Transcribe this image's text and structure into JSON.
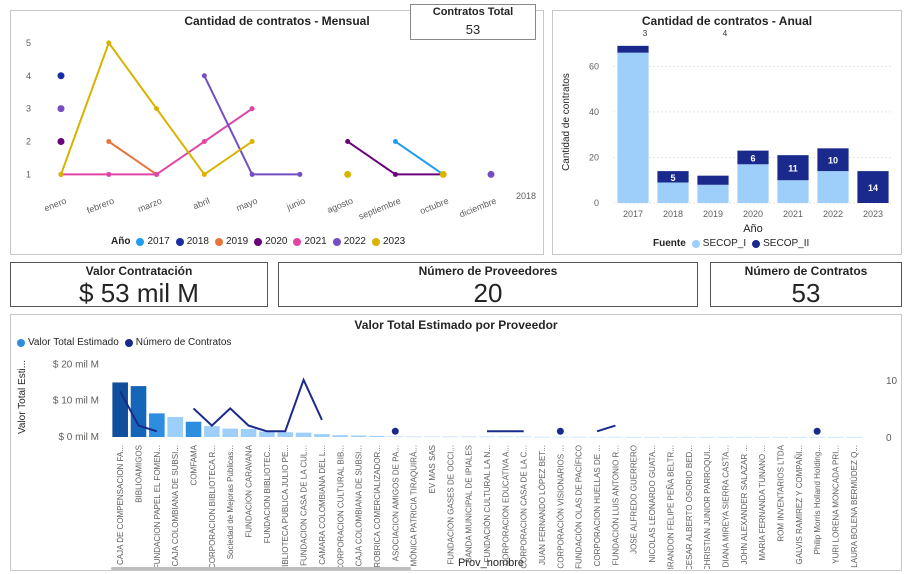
{
  "monthly": {
    "title": "Cantidad de contratos - Mensual",
    "legend_title": "Año",
    "y_ticks": [
      "1",
      "2",
      "3",
      "4",
      "5"
    ],
    "extra_label": "2018",
    "chart_data": {
      "type": "line",
      "categories": [
        "enero",
        "febrero",
        "marzo",
        "abril",
        "mayo",
        "junio",
        "agosto",
        "septiembre",
        "octubre",
        "diciembre"
      ],
      "ylim": [
        0.8,
        5.3
      ],
      "series": [
        {
          "name": "2017",
          "color": "#1f9bf0",
          "values": [
            null,
            null,
            null,
            null,
            null,
            null,
            null,
            2,
            1,
            null
          ]
        },
        {
          "name": "2018",
          "color": "#1a2fa3",
          "values": [
            4,
            null,
            null,
            null,
            null,
            null,
            null,
            null,
            null,
            null
          ]
        },
        {
          "name": "2019",
          "color": "#e8743b",
          "values": [
            null,
            2,
            1,
            null,
            null,
            null,
            null,
            null,
            null,
            null
          ]
        },
        {
          "name": "2020",
          "color": "#6b007b",
          "values": [
            2,
            null,
            null,
            null,
            null,
            null,
            2,
            1,
            1,
            null
          ]
        },
        {
          "name": "2021",
          "color": "#e044a7",
          "values": [
            1,
            1,
            1,
            2,
            3,
            null,
            null,
            null,
            null,
            null
          ]
        },
        {
          "name": "2022",
          "color": "#744ec2",
          "values": [
            3,
            null,
            null,
            4,
            1,
            1,
            null,
            null,
            null,
            1
          ]
        },
        {
          "name": "2023",
          "color": "#d9b300",
          "values": [
            1,
            5,
            3,
            1,
            2,
            null,
            1,
            null,
            1,
            null
          ]
        }
      ]
    }
  },
  "kpi_total": {
    "label": "Contratos Total",
    "value": "53"
  },
  "annual": {
    "title": "Cantidad de contratos - Anual",
    "ylabel": "Cantidad de contratos",
    "xlabel": "Año",
    "legend_title": "Fuente",
    "y_ticks": [
      "0",
      "20",
      "40",
      "60"
    ],
    "chart_data": {
      "type": "bar",
      "categories": [
        "2017",
        "2018",
        "2019",
        "2020",
        "2021",
        "2022",
        "2023"
      ],
      "ylim": [
        0,
        72
      ],
      "series": [
        {
          "name": "SECOP_I",
          "color": "#9ecffb",
          "values": [
            66,
            9,
            8,
            17,
            10,
            14,
            0
          ]
        },
        {
          "name": "SECOP_II",
          "color": "#1a2a8c",
          "values": [
            3,
            5,
            4,
            6,
            11,
            10,
            14
          ]
        }
      ],
      "data_labels_secop_ii": [
        "3",
        "5",
        "4",
        "6",
        "11",
        "10",
        "14"
      ],
      "data_labels_shown_inside": [
        false,
        true,
        false,
        true,
        true,
        true,
        true
      ]
    }
  },
  "kpi_valor": {
    "label": "Valor Contratación",
    "value": "$ 53 mil M"
  },
  "kpi_prov": {
    "label": "Número de Proveedores",
    "value": "20"
  },
  "kpi_contr": {
    "label": "Número de Contratos",
    "value": "53"
  },
  "bottom": {
    "title": "Valor Total Estimado por Proveedor",
    "legend": [
      "Valor Total Estimado",
      "Número de Contratos"
    ],
    "ylabel": "Valor Total Esti...",
    "xlabel": "Prov_nombre",
    "y_ticks": [
      "$ 0 mil M",
      "$ 10 mil M",
      "$ 20 mil M"
    ],
    "y2_ticks": [
      "0",
      "10"
    ],
    "chart_data": {
      "type": "bar",
      "categories": [
        "CAJA DE COMPENSACION FA...",
        "BIBLIOAMIGOS",
        "FUNDACION PAPEL EL FOMEN...",
        "CAJA COLOMBIANA DE SUBSI...",
        "COMFAMA",
        "CORPORACION BIBLIOTECA R...",
        "Sociedad de Mejoras Públicas...",
        "FUNDACION CARAVANA",
        "FUNDACION BIBLIOTEC...",
        "BIBLIOTECA PUBLICA JULIO PE...",
        "FUNDACION CASA DE LA CUL...",
        "CAMARA COLOMBIANA DEL L...",
        "CORPORACION CULTURAL BIB...",
        "CAJA COLOMBIANA DE SUBSI...",
        "ROBRICA COMERCIALIZADOR...",
        "ASOCIACION AMIGOS DE PA...",
        "MÓNICA PATRICIA TIRAQUIRÁ...",
        "EV MAS SAS",
        "FUNDACION GASES DE OCCI...",
        "BANDA MUNICIPAL DE IPIALES",
        "FUNDACIÓN CULTURAL LA N...",
        "CORPORACION EDUCATIVA A...",
        "CORPORACION CASA DE LA C...",
        "JUAN FERNANDO LÓPEZ BET...",
        "CORPORACIÓN VISIONARIOS ...",
        "FUNDACIÓN OLAS DE PACÍFICO",
        "CORPORACION HUELLAS DE ...",
        "FUNDACIÓN LUIS ANTONIO R...",
        "JOSE ALFREDO GUERRERO",
        "NICOLAS LEONARDO GUATA...",
        "BRANDON FELIPE PEÑA BELTR...",
        "CESAR ALBERTO OSORIO BED...",
        "CHRISTIAN JUNIOR PARROQUI...",
        "DIANA MIREYA SIERRA CASTA...",
        "JOHN ALEXANDER SALAZAR ...",
        "MARIA FERNANDA TUNANO ...",
        "ROM INVENTARIOS LTDA",
        "GALVIS RAMIREZ Y COMPAÑI...",
        "Philip Morris Holland Holding...",
        "YURI LORENA MONCADA PRI...",
        "LAURA BOLENA BERMÚDEZ Q..."
      ],
      "values_mil_M": [
        15,
        14,
        6.5,
        5.5,
        4.2,
        3,
        2.3,
        2.2,
        1.5,
        1.3,
        1.2,
        0.8,
        0.5,
        0.4,
        0.3,
        0.15,
        0.1,
        0.1,
        0.1,
        0.1,
        0.1,
        0.1,
        0.1,
        0.05,
        0.05,
        0.05,
        0.05,
        0.05,
        0.02,
        0.02,
        0.02,
        0.02,
        0.02,
        0.02,
        0.02,
        0.02,
        0.02,
        0.02,
        0.02,
        0.02,
        0.02
      ],
      "bar_colors": [
        "#0f4f9c",
        "#1565b8",
        "#2d8ee0",
        "#9ecffb",
        "#2d8ee0",
        "#9ecffb",
        "#9ecffb",
        "#9ecffb",
        "#9ecffb",
        "#9ecffb",
        "#9ecffb",
        "#9ecffb",
        "#9ecffb",
        "#9ecffb",
        "#9ecffb",
        "#9ecffb",
        "#9ecffb",
        "#9ecffb",
        "#9ecffb",
        "#9ecffb",
        "#9ecffb",
        "#9ecffb",
        "#9ecffb",
        "#9ecffb",
        "#9ecffb",
        "#9ecffb",
        "#9ecffb",
        "#9ecffb",
        "#9ecffb",
        "#9ecffb",
        "#9ecffb",
        "#9ecffb",
        "#9ecffb",
        "#9ecffb",
        "#9ecffb",
        "#9ecffb",
        "#9ecffb",
        "#9ecffb",
        "#9ecffb",
        "#9ecffb",
        "#9ecffb"
      ],
      "ylim": [
        0,
        22
      ],
      "contracts": [
        8,
        2,
        1,
        null,
        5,
        2,
        5,
        2,
        1,
        1,
        10,
        3,
        null,
        null,
        null,
        1,
        null,
        null,
        null,
        null,
        1,
        1,
        1,
        null,
        1,
        null,
        1,
        2,
        null,
        null,
        null,
        null,
        null,
        null,
        null,
        null,
        null,
        null,
        1,
        null,
        null
      ],
      "contracts_ylim": [
        0,
        14
      ]
    }
  }
}
